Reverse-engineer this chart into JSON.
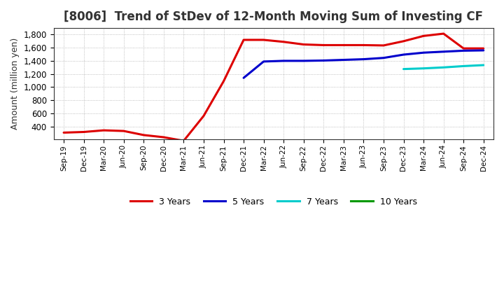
{
  "title": "[8006]  Trend of StDev of 12-Month Moving Sum of Investing CF",
  "ylabel": "Amount (million yen)",
  "background_color": "#ffffff",
  "grid_color": "#999999",
  "x_labels": [
    "Sep-19",
    "Dec-19",
    "Mar-20",
    "Jun-20",
    "Sep-20",
    "Dec-20",
    "Mar-21",
    "Jun-21",
    "Sep-21",
    "Dec-21",
    "Mar-22",
    "Jun-22",
    "Sep-22",
    "Dec-22",
    "Mar-23",
    "Jun-23",
    "Sep-23",
    "Dec-23",
    "Mar-24",
    "Jun-24",
    "Sep-24",
    "Dec-24"
  ],
  "series": {
    "3 Years": {
      "color": "#dd0000",
      "data_x": [
        0,
        1,
        2,
        3,
        4,
        5,
        6,
        7,
        8,
        9,
        10,
        11,
        12,
        13,
        14,
        15,
        16,
        17,
        18,
        19,
        20,
        21
      ],
      "data_y": [
        305,
        315,
        340,
        330,
        268,
        235,
        180,
        560,
        1090,
        1720,
        1720,
        1690,
        1650,
        1640,
        1640,
        1640,
        1635,
        1700,
        1780,
        1815,
        1590,
        1590
      ]
    },
    "5 Years": {
      "color": "#0000cc",
      "data_x": [
        9,
        10,
        11,
        12,
        13,
        14,
        15,
        16,
        17,
        18,
        19,
        20,
        21
      ],
      "data_y": [
        1140,
        1390,
        1400,
        1400,
        1405,
        1415,
        1425,
        1445,
        1495,
        1525,
        1540,
        1555,
        1560
      ]
    },
    "7 Years": {
      "color": "#00cccc",
      "data_x": [
        17,
        18,
        19,
        20,
        21
      ],
      "data_y": [
        1275,
        1285,
        1300,
        1320,
        1335
      ]
    },
    "10 Years": {
      "color": "#009900",
      "data_x": [],
      "data_y": []
    }
  },
  "ylim": [
    200,
    1900
  ],
  "yticks": [
    400,
    600,
    800,
    1000,
    1200,
    1400,
    1600,
    1800
  ],
  "legend_labels": [
    "3 Years",
    "5 Years",
    "7 Years",
    "10 Years"
  ],
  "legend_colors": [
    "#dd0000",
    "#0000cc",
    "#00cccc",
    "#009900"
  ],
  "title_fontsize": 12,
  "title_color": "#333333"
}
